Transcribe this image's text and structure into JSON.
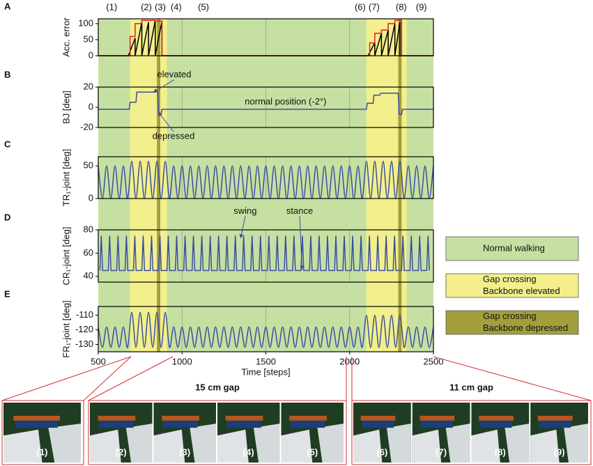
{
  "chart_data": [
    {
      "type": "line",
      "panel": "A",
      "ylabel": "Acc. error",
      "xlim": [
        500,
        2500
      ],
      "xticks": [
        500,
        1000,
        1500,
        2000,
        2500
      ],
      "ylim": [
        0,
        115
      ],
      "yticks": [
        0,
        50,
        100
      ],
      "grid": true,
      "series": [
        {
          "color": "#000000",
          "x": [
            500,
            680,
            720,
            720,
            760,
            760,
            800,
            800,
            840,
            840,
            880,
            880,
            2110,
            2150,
            2150,
            2190,
            2190,
            2230,
            2230,
            2270,
            2270,
            2300,
            2300,
            2500
          ],
          "values": [
            0,
            0,
            55,
            0,
            105,
            0,
            105,
            0,
            110,
            0,
            108,
            0,
            0,
            40,
            0,
            70,
            0,
            80,
            0,
            100,
            0,
            105,
            0,
            0
          ]
        },
        {
          "color": "#e02020",
          "x": [
            500,
            690,
            690,
            720,
            720,
            760,
            760,
            840,
            840,
            880,
            880,
            2120,
            2120,
            2150,
            2150,
            2190,
            2190,
            2230,
            2230,
            2270,
            2270,
            2310,
            2310,
            2500
          ],
          "values": [
            0,
            0,
            60,
            60,
            100,
            100,
            110,
            110,
            108,
            108,
            0,
            0,
            40,
            40,
            70,
            70,
            80,
            80,
            100,
            100,
            110,
            110,
            0,
            0
          ]
        }
      ]
    },
    {
      "type": "line",
      "panel": "B",
      "ylabel": "BJ [deg]",
      "xlim": [
        500,
        2500
      ],
      "xticks": [
        500,
        1000,
        1500,
        2000,
        2500
      ],
      "ylim": [
        -20,
        20
      ],
      "yticks": [
        -20,
        0,
        20
      ],
      "grid": true,
      "annotations": [
        {
          "text": "elevated",
          "x": 953,
          "y": 32,
          "point": [
            830,
            15
          ]
        },
        {
          "text": "depressed",
          "x": 949,
          "y": -29,
          "point": [
            860,
            -5
          ]
        },
        {
          "text": "normal position (-2°)",
          "x": 1618,
          "y": 5
        }
      ],
      "series": [
        {
          "color": "#3a4fa0",
          "x": [
            500,
            685,
            690,
            725,
            730,
            840,
            845,
            855,
            860,
            875,
            880,
            2100,
            2105,
            2140,
            2145,
            2180,
            2185,
            2290,
            2295,
            2310,
            2315,
            2500
          ],
          "values": [
            -2,
            -2,
            5,
            5,
            15,
            15,
            16,
            16,
            -7,
            -7,
            -2,
            -2,
            4,
            4,
            12,
            12,
            14,
            14,
            -7,
            -7,
            -2,
            -2
          ]
        }
      ]
    },
    {
      "type": "line",
      "panel": "C",
      "ylabel": "TR₁-joint [deg]",
      "xlim": [
        500,
        2500
      ],
      "xticks": [
        500,
        1000,
        1500,
        2000,
        2500
      ],
      "ylim": [
        0,
        64
      ],
      "yticks": [
        0,
        50
      ],
      "grid": true,
      "smooth": true,
      "series": [
        {
          "color": "#3a4fa0",
          "x": [
            500,
            525,
            550,
            575,
            600,
            625,
            650,
            675,
            700,
            725,
            750,
            775,
            800,
            825,
            850,
            875,
            900,
            925,
            950,
            975,
            1000,
            1025,
            1050,
            1075,
            1100,
            1125,
            1150,
            1175,
            1200,
            1225,
            1250,
            1275,
            1300,
            1325,
            1350,
            1375,
            1400,
            1425,
            1450,
            1475,
            1500,
            1525,
            1550,
            1575,
            1600,
            1625,
            1650,
            1675,
            1700,
            1725,
            1750,
            1775,
            1800,
            1825,
            1850,
            1875,
            1900,
            1925,
            1950,
            1975,
            2000,
            2025,
            2050,
            2075,
            2100,
            2125,
            2150,
            2175,
            2200,
            2225,
            2250,
            2275,
            2300,
            2325,
            2350,
            2375,
            2400,
            2425,
            2450,
            2475,
            2500
          ],
          "values": [
            50,
            0,
            50,
            0,
            50,
            0,
            50,
            0,
            57,
            0,
            57,
            0,
            57,
            0,
            57,
            0,
            57,
            0,
            50,
            0,
            50,
            0,
            50,
            0,
            50,
            0,
            50,
            0,
            50,
            0,
            50,
            0,
            50,
            0,
            50,
            0,
            50,
            0,
            50,
            0,
            50,
            0,
            50,
            0,
            50,
            0,
            50,
            0,
            50,
            0,
            50,
            0,
            50,
            0,
            50,
            0,
            50,
            0,
            50,
            0,
            50,
            0,
            50,
            0,
            57,
            0,
            57,
            0,
            57,
            0,
            57,
            0,
            57,
            0,
            50,
            0,
            50,
            0,
            50,
            0,
            50
          ]
        }
      ]
    },
    {
      "type": "line",
      "panel": "D",
      "ylabel": "CR₁-joint [deg]",
      "xlim": [
        500,
        2500
      ],
      "xticks": [
        500,
        1000,
        1500,
        2000,
        2500
      ],
      "ylim": [
        35,
        80
      ],
      "yticks": [
        40,
        60,
        80
      ],
      "grid": true,
      "annotations": [
        {
          "text": "swing",
          "x": 1377,
          "y": 96,
          "point": [
            1350,
            73
          ]
        },
        {
          "text": "stance",
          "x": 1702,
          "y": 96,
          "point": [
            1716,
            46
          ]
        }
      ],
      "series": [
        {
          "color": "#3a4fa0",
          "x": [
            510,
            518,
            526,
            560,
            568,
            576,
            610,
            618,
            626,
            660,
            668,
            676,
            710,
            718,
            726,
            760,
            768,
            776,
            810,
            818,
            826,
            860,
            868,
            876,
            910,
            918,
            926,
            960,
            968,
            976,
            1010,
            1018,
            1026,
            1060,
            1068,
            1076,
            1110,
            1118,
            1126,
            1160,
            1168,
            1176,
            1210,
            1218,
            1226,
            1260,
            1268,
            1276,
            1310,
            1318,
            1326,
            1360,
            1368,
            1376,
            1410,
            1418,
            1426,
            1460,
            1468,
            1476,
            1510,
            1518,
            1526,
            1560,
            1568,
            1576,
            1610,
            1618,
            1626,
            1660,
            1668,
            1676,
            1710,
            1718,
            1726,
            1760,
            1768,
            1776,
            1810,
            1818,
            1826,
            1860,
            1868,
            1876,
            1910,
            1918,
            1926,
            1960,
            1968,
            1976,
            2010,
            2018,
            2026,
            2060,
            2068,
            2076,
            2110,
            2118,
            2126,
            2160,
            2168,
            2176,
            2210,
            2218,
            2226,
            2260,
            2268,
            2276,
            2310,
            2318,
            2326,
            2360,
            2368,
            2376,
            2410,
            2418,
            2426,
            2460,
            2468,
            2476
          ],
          "values": [
            45,
            75,
            45,
            45,
            75,
            45,
            45,
            75,
            45,
            45,
            75,
            45,
            45,
            75,
            45,
            45,
            75,
            45,
            45,
            75,
            45,
            45,
            75,
            45,
            45,
            75,
            45,
            45,
            75,
            45,
            45,
            75,
            45,
            45,
            75,
            45,
            45,
            75,
            45,
            45,
            75,
            45,
            45,
            75,
            45,
            45,
            75,
            45,
            45,
            75,
            45,
            45,
            75,
            45,
            45,
            75,
            45,
            45,
            75,
            45,
            45,
            75,
            45,
            45,
            75,
            45,
            45,
            75,
            45,
            45,
            75,
            45,
            45,
            75,
            45,
            45,
            75,
            45,
            45,
            75,
            45,
            45,
            75,
            45,
            45,
            75,
            45,
            45,
            75,
            45,
            45,
            75,
            45,
            45,
            75,
            45,
            45,
            75,
            45,
            45,
            75,
            45,
            45,
            75,
            45,
            45,
            75,
            45,
            45,
            75,
            45,
            45,
            75,
            45,
            45,
            75,
            45,
            45,
            75,
            45
          ]
        }
      ]
    },
    {
      "type": "line",
      "panel": "E",
      "ylabel": "FR₁-joint [deg]",
      "xlabel": "Time [steps]",
      "xlim": [
        500,
        2500
      ],
      "xticks": [
        500,
        1000,
        1500,
        2000,
        2500
      ],
      "ylim": [
        -135,
        -104
      ],
      "yticks": [
        -130,
        -120,
        -110
      ],
      "grid": true,
      "smooth": true,
      "series": [
        {
          "color": "#3a4fa0",
          "x": [
            500,
            525,
            550,
            575,
            600,
            625,
            650,
            675,
            700,
            725,
            750,
            775,
            800,
            825,
            850,
            875,
            900,
            925,
            950,
            975,
            1000,
            1025,
            1050,
            1075,
            1100,
            1125,
            1150,
            1175,
            1200,
            1225,
            1250,
            1275,
            1300,
            1325,
            1350,
            1375,
            1400,
            1425,
            1450,
            1475,
            1500,
            1525,
            1550,
            1575,
            1600,
            1625,
            1650,
            1675,
            1700,
            1725,
            1750,
            1775,
            1800,
            1825,
            1850,
            1875,
            1900,
            1925,
            1950,
            1975,
            2000,
            2025,
            2050,
            2075,
            2100,
            2125,
            2150,
            2175,
            2200,
            2225,
            2250,
            2275,
            2300,
            2325,
            2350,
            2375,
            2400,
            2425,
            2450,
            2475,
            2500
          ],
          "values": [
            -118,
            -132,
            -118,
            -132,
            -118,
            -132,
            -118,
            -132,
            -108,
            -132,
            -108,
            -132,
            -108,
            -132,
            -108,
            -132,
            -108,
            -132,
            -118,
            -132,
            -118,
            -132,
            -118,
            -132,
            -118,
            -132,
            -118,
            -132,
            -118,
            -132,
            -118,
            -132,
            -118,
            -132,
            -118,
            -132,
            -118,
            -132,
            -118,
            -132,
            -118,
            -132,
            -118,
            -132,
            -118,
            -132,
            -118,
            -132,
            -118,
            -132,
            -118,
            -132,
            -118,
            -132,
            -118,
            -132,
            -118,
            -132,
            -118,
            -132,
            -118,
            -132,
            -118,
            -132,
            -110,
            -132,
            -110,
            -132,
            -110,
            -132,
            -110,
            -132,
            -110,
            -132,
            -118,
            -132,
            -118,
            -132,
            -118,
            -132,
            -118
          ]
        }
      ]
    }
  ],
  "phases": [
    {
      "label": "(1)",
      "x": 580
    },
    {
      "label": "(2)",
      "x": 787
    },
    {
      "label": "(3)",
      "x": 870
    },
    {
      "label": "(4)",
      "x": 965
    },
    {
      "label": "(5)",
      "x": 1128
    },
    {
      "label": "(6)",
      "x": 2063
    },
    {
      "label": "(7)",
      "x": 2146
    },
    {
      "label": "(8)",
      "x": 2308
    },
    {
      "label": "(9)",
      "x": 2428
    }
  ],
  "legend": {
    "items": [
      {
        "lines": [
          "Normal walking"
        ],
        "color": "#c6e0a2",
        "spans": [
          [
            500,
            2500
          ]
        ]
      },
      {
        "lines": [
          "Gap crossing",
          "Backbone elevated"
        ],
        "color": "#f2ef8c",
        "spans": [
          [
            690,
            910
          ],
          [
            2100,
            2340
          ]
        ]
      },
      {
        "lines": [
          "Gap crossing",
          "Backbone depressed"
        ],
        "color": "#a29f3c",
        "spans": [
          [
            850,
            870
          ],
          [
            2290,
            2310
          ]
        ]
      }
    ]
  },
  "snapshots": [
    {
      "labels": [
        "(1)"
      ]
    },
    {
      "title": "15 cm gap",
      "labels": [
        "(2)",
        "(3)",
        "(4)",
        "(5)"
      ]
    },
    {
      "title": "11 cm gap",
      "labels": [
        "(6)",
        "(7)",
        "(8)",
        "(9)"
      ]
    }
  ]
}
